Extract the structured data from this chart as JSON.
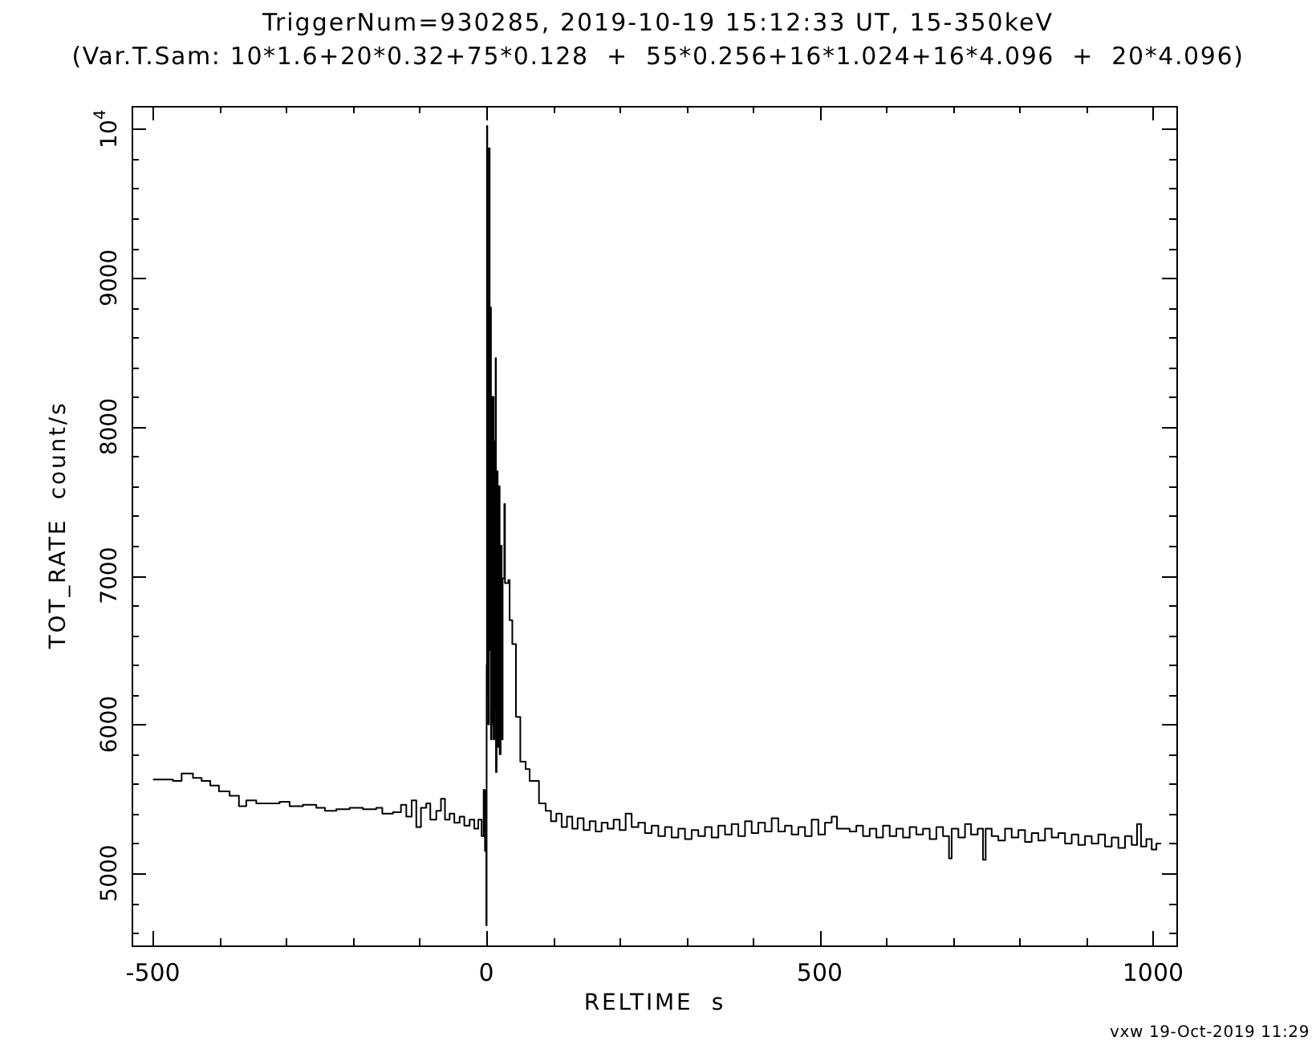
{
  "chart_data": {
    "type": "step",
    "title": "TriggerNum=930285, 2019-10-19 15:12:33 UT, 15-350keV",
    "subtitle": "(Var.T.Sam: 10*1.6+20*0.32+75*0.128  +  55*0.256+16*1.024+16*4.096  +  20*4.096)",
    "xlabel": "RELTIME  s",
    "ylabel": "TOT_RATE  count/s",
    "annotations": [
      "vxw 19-Oct-2019 11:29"
    ],
    "color": "#000000",
    "x": [
      -500,
      -470,
      -457,
      -440,
      -427,
      -414,
      -401,
      -385,
      -371,
      -360,
      -345,
      -328,
      -310,
      -295,
      -275,
      -255,
      -242,
      -225,
      -205,
      -185,
      -165,
      -156,
      -140,
      -128,
      -120,
      -112,
      -105,
      -98,
      -90,
      -84,
      -75,
      -68,
      -62,
      -55,
      -48,
      -40,
      -33,
      -25,
      -18,
      -12,
      -7,
      -4,
      -2,
      0,
      0.5,
      1,
      1.5,
      2,
      3,
      4,
      5,
      6,
      7,
      8,
      9,
      10,
      11,
      12,
      13,
      14,
      14.5,
      15.5,
      17,
      18.5,
      20,
      21.5,
      23,
      24.5,
      27,
      28,
      33,
      35,
      39,
      44.5,
      51,
      59,
      65,
      79,
      89,
      97,
      105,
      113,
      121,
      129,
      137,
      146,
      155,
      164,
      173,
      182,
      191,
      200,
      209,
      218,
      228,
      238,
      248,
      258,
      268,
      278,
      288,
      298,
      308,
      318,
      328,
      338,
      348,
      358,
      368,
      378,
      388,
      398,
      408,
      418,
      428,
      438,
      448,
      458,
      468,
      478,
      488,
      498,
      508,
      518,
      526,
      545,
      555,
      565,
      575,
      585,
      595,
      605,
      615,
      625,
      635,
      645,
      655,
      665,
      675,
      685,
      694,
      698,
      708,
      718,
      727,
      737,
      745,
      749,
      758,
      768,
      778,
      788,
      798,
      808,
      818,
      828,
      838,
      848,
      858,
      868,
      878,
      888,
      898,
      908,
      918,
      928,
      938,
      948,
      958,
      968,
      976,
      982,
      990,
      998,
      1005,
      1012
    ],
    "values": [
      5630,
      5620,
      5670,
      5640,
      5620,
      5590,
      5550,
      5520,
      5450,
      5490,
      5470,
      5470,
      5480,
      5450,
      5460,
      5440,
      5420,
      5430,
      5440,
      5430,
      5440,
      5400,
      5410,
      5460,
      5380,
      5490,
      5310,
      5440,
      5470,
      5360,
      5420,
      5500,
      5360,
      5400,
      5340,
      5380,
      5320,
      5360,
      5300,
      5360,
      5250,
      5560,
      5150,
      4650,
      6400,
      10020,
      6200,
      8840,
      6000,
      9870,
      6500,
      8800,
      5900,
      8200,
      6000,
      8200,
      5900,
      7900,
      6100,
      8460,
      5680,
      7700,
      5850,
      7600,
      5800,
      7200,
      5900,
      6980,
      7480,
      6950,
      6970,
      6700,
      6540,
      6050,
      5750,
      5700,
      5620,
      5470,
      5420,
      5350,
      5400,
      5310,
      5380,
      5300,
      5370,
      5290,
      5350,
      5280,
      5340,
      5300,
      5360,
      5290,
      5400,
      5310,
      5340,
      5270,
      5320,
      5250,
      5310,
      5240,
      5300,
      5230,
      5290,
      5250,
      5310,
      5240,
      5320,
      5260,
      5330,
      5250,
      5350,
      5270,
      5340,
      5280,
      5370,
      5280,
      5320,
      5260,
      5310,
      5250,
      5360,
      5260,
      5340,
      5380,
      5300,
      5280,
      5320,
      5250,
      5300,
      5240,
      5320,
      5250,
      5300,
      5240,
      5310,
      5260,
      5300,
      5230,
      5310,
      5250,
      5100,
      5300,
      5240,
      5330,
      5260,
      5300,
      5090,
      5300,
      5250,
      5220,
      5300,
      5240,
      5290,
      5210,
      5270,
      5220,
      5300,
      5240,
      5270,
      5200,
      5260,
      5190,
      5250,
      5200,
      5260,
      5180,
      5240,
      5170,
      5250,
      5190,
      5330,
      5180,
      5230,
      5160,
      5200,
      5200
    ],
    "xlim": [
      -532,
      1035
    ],
    "ylim": [
      4515,
      10155
    ],
    "xticks": [
      -500,
      {
        "value": -400,
        "label": null
      },
      {
        "value": -300,
        "label": null
      },
      {
        "value": -200,
        "label": null
      },
      {
        "value": -100,
        "label": null
      },
      0,
      {
        "value": 100,
        "label": null
      },
      {
        "value": 200,
        "label": null
      },
      {
        "value": 300,
        "label": null
      },
      {
        "value": 400,
        "label": null
      },
      500,
      {
        "value": 600,
        "label": null
      },
      {
        "value": 700,
        "label": null
      },
      {
        "value": 800,
        "label": null
      },
      {
        "value": 900,
        "label": null
      },
      1000
    ],
    "yticks": [
      {
        "value": 4600,
        "label": null
      },
      {
        "value": 4800,
        "label": null
      },
      5000,
      {
        "value": 5200,
        "label": null
      },
      {
        "value": 5400,
        "label": null
      },
      {
        "value": 5600,
        "label": null
      },
      {
        "value": 5800,
        "label": null
      },
      6000,
      {
        "value": 6200,
        "label": null
      },
      {
        "value": 6400,
        "label": null
      },
      {
        "value": 6600,
        "label": null
      },
      {
        "value": 6800,
        "label": null
      },
      7000,
      {
        "value": 7200,
        "label": null
      },
      {
        "value": 7400,
        "label": null
      },
      {
        "value": 7600,
        "label": null
      },
      {
        "value": 7800,
        "label": null
      },
      8000,
      {
        "value": 8200,
        "label": null
      },
      {
        "value": 8400,
        "label": null
      },
      {
        "value": 8600,
        "label": null
      },
      {
        "value": 8800,
        "label": null
      },
      9000,
      {
        "value": 9200,
        "label": null
      },
      {
        "value": 9400,
        "label": null
      },
      {
        "value": 9600,
        "label": null
      },
      {
        "value": 9800,
        "label": null
      },
      {
        "value": 10000,
        "label": "10$^{4}$"
      }
    ]
  }
}
